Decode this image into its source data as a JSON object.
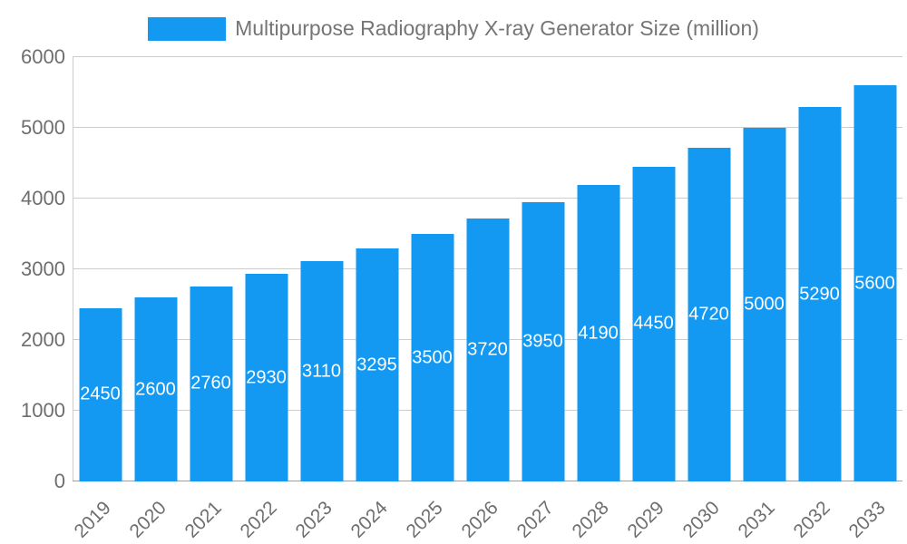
{
  "chart_data": {
    "type": "bar",
    "title": "Multipurpose Radiography X-ray Generator Size (million)",
    "categories": [
      "2019",
      "2020",
      "2021",
      "2022",
      "2023",
      "2024",
      "2025",
      "2026",
      "2027",
      "2028",
      "2029",
      "2030",
      "2031",
      "2032",
      "2033"
    ],
    "values": [
      2450,
      2600,
      2760,
      2930,
      3110,
      3295,
      3500,
      3720,
      3950,
      4190,
      4450,
      4720,
      5000,
      5290,
      5600
    ],
    "xlabel": "",
    "ylabel": "",
    "ylim": [
      0,
      6000
    ],
    "ytick_step": 1000,
    "yticks": [
      0,
      1000,
      2000,
      3000,
      4000,
      5000,
      6000
    ],
    "grid": true,
    "legend_position": "top",
    "bar_color": "#1499f3",
    "value_label_color": "#ffffff",
    "axis_text_color": "#6e6e6e",
    "gridline_color": "#cccccc"
  }
}
